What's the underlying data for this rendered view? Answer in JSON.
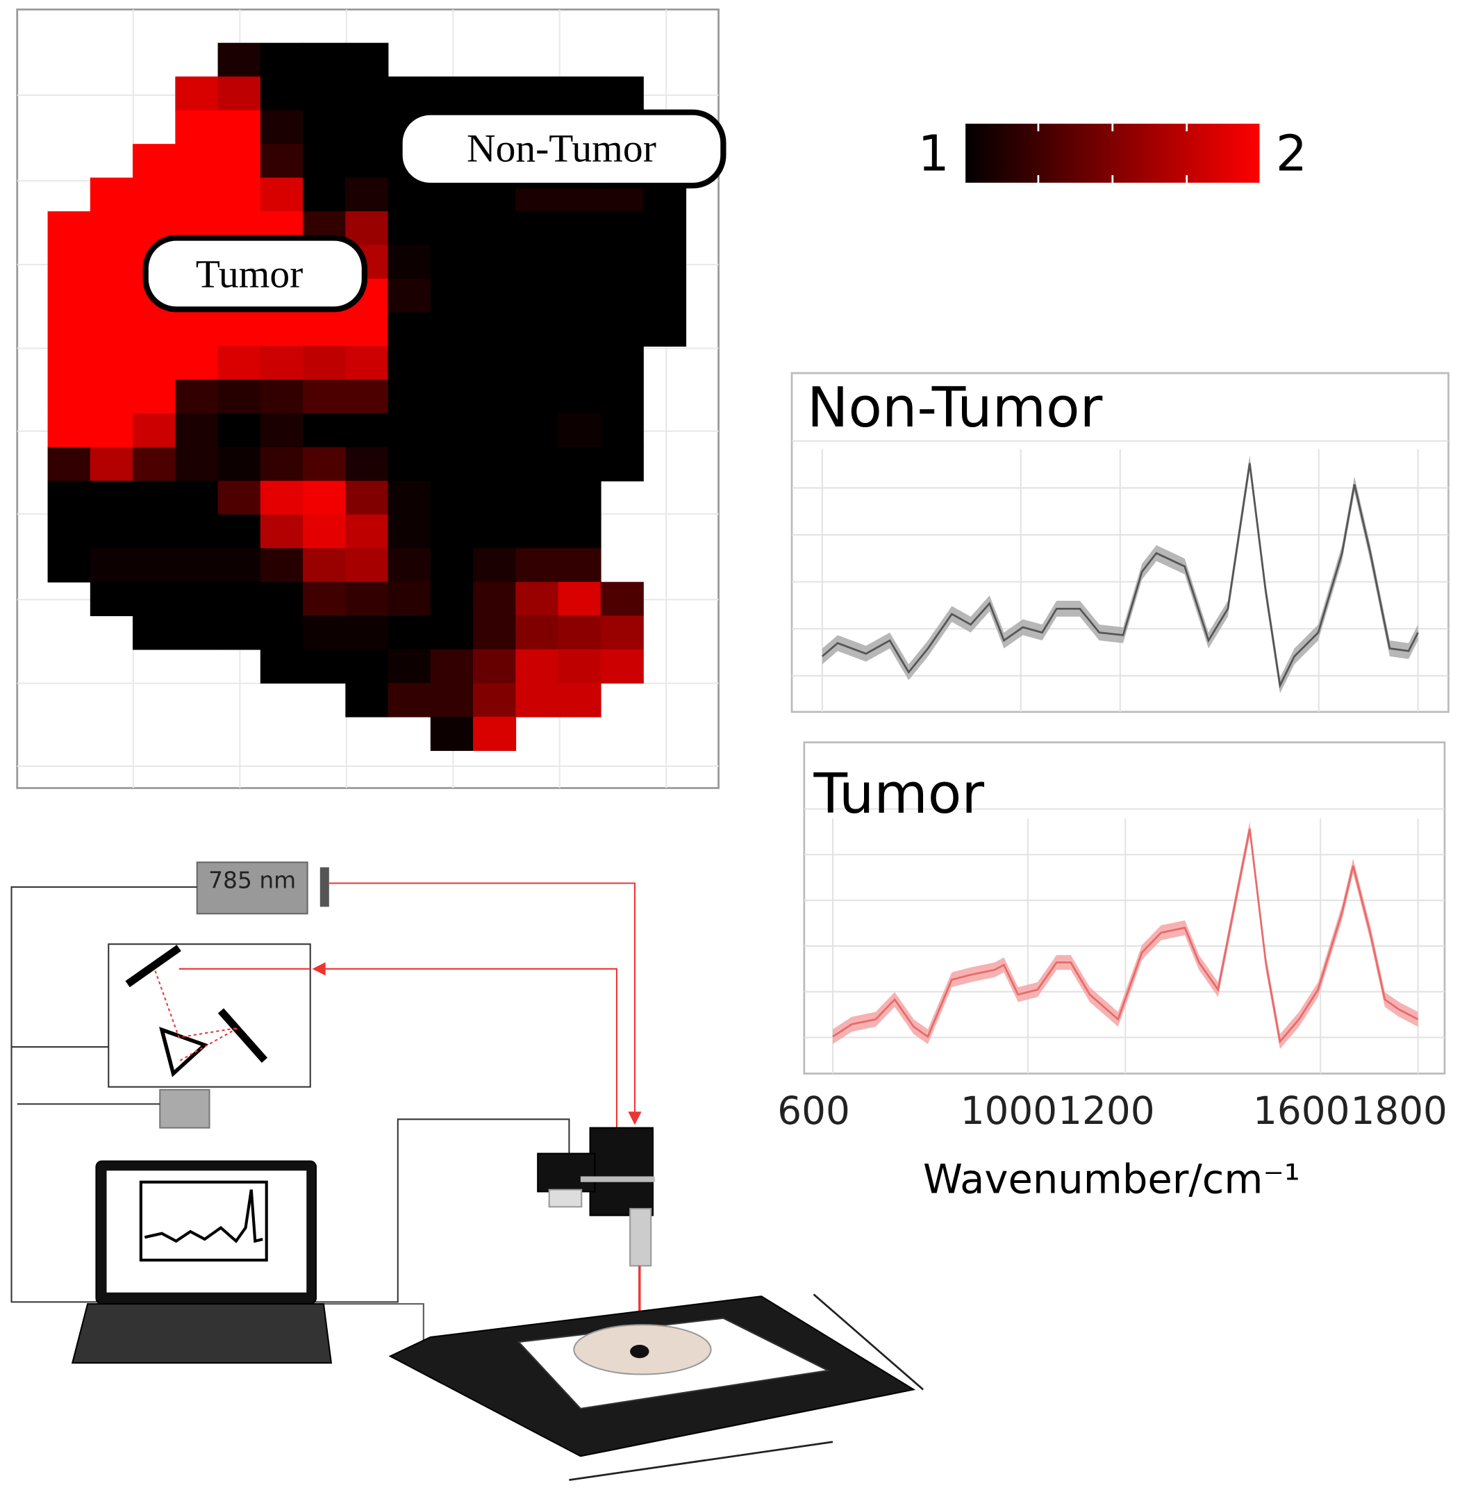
{
  "chart_data": [
    {
      "type": "heatmap",
      "colorbar_lim": [
        1,
        2
      ],
      "colorbar_ticks": [
        1,
        2
      ],
      "colors": [
        "#000000",
        "#ff0000"
      ],
      "annotations": [
        "Non-Tumor",
        "Tumor"
      ],
      "values": [
        [
          null,
          null,
          null,
          null,
          1.1,
          1.0,
          1.0,
          1.0,
          null,
          null,
          null,
          null,
          null,
          null,
          null
        ],
        [
          null,
          null,
          null,
          1.85,
          1.75,
          1.0,
          1.0,
          1.0,
          1.0,
          1.0,
          1.0,
          1.0,
          1.0,
          1.0,
          null
        ],
        [
          null,
          null,
          null,
          2,
          2,
          1.1,
          1.0,
          1.0,
          1.0,
          1.0,
          1.0,
          1.0,
          1.0,
          1.0,
          null
        ],
        [
          null,
          null,
          2,
          2,
          2,
          1.2,
          1.0,
          1.0,
          1.0,
          1.0,
          1.0,
          1.0,
          1.0,
          1.0,
          1.0
        ],
        [
          null,
          2,
          2,
          2,
          2,
          1.85,
          1.0,
          1.1,
          1.0,
          1.0,
          1.0,
          1.1,
          1.1,
          1.1,
          1.0
        ],
        [
          2,
          2,
          2,
          2,
          2,
          2,
          1.2,
          1.6,
          1.0,
          1.0,
          1.0,
          1.0,
          1.0,
          1.0,
          1.0
        ],
        [
          2,
          2,
          2,
          2,
          2,
          2,
          2,
          1.7,
          1.05,
          1.0,
          1.0,
          1.0,
          1.0,
          1.0,
          1.0
        ],
        [
          2,
          2,
          2,
          2,
          2,
          2,
          2,
          2,
          1.1,
          1.0,
          1.0,
          1.0,
          1.0,
          1.0,
          1.0
        ],
        [
          2,
          2,
          2,
          2,
          2,
          2,
          2,
          2,
          1.0,
          1.0,
          1.0,
          1.0,
          1.0,
          1.0,
          1.0
        ],
        [
          2,
          2,
          2,
          2,
          1.85,
          1.8,
          1.75,
          1.8,
          1.0,
          1.0,
          1.0,
          1.0,
          1.0,
          1.0,
          null
        ],
        [
          2,
          2,
          2,
          1.2,
          1.15,
          1.2,
          1.3,
          1.3,
          1.0,
          1.0,
          1.0,
          1.0,
          1.0,
          1.0,
          null
        ],
        [
          2,
          2,
          1.8,
          1.1,
          1.0,
          1.1,
          1.0,
          1.0,
          1.0,
          1.0,
          1.0,
          1.0,
          1.05,
          1.0,
          null
        ],
        [
          1.2,
          1.7,
          1.3,
          1.1,
          1.05,
          1.2,
          1.3,
          1.1,
          1.0,
          1.0,
          1.0,
          1.0,
          1.0,
          1.0,
          null
        ],
        [
          1.0,
          1.0,
          1.0,
          1.0,
          1.3,
          1.9,
          1.95,
          1.5,
          1.05,
          1.0,
          1.0,
          1.0,
          1.0,
          null,
          null
        ],
        [
          1.0,
          1.0,
          1.0,
          1.0,
          1.0,
          1.7,
          1.9,
          1.75,
          1.05,
          1.0,
          1.0,
          1.0,
          1.0,
          null,
          null
        ],
        [
          1.0,
          1.05,
          1.05,
          1.05,
          1.05,
          1.15,
          1.6,
          1.65,
          1.1,
          1.0,
          1.1,
          1.2,
          1.2,
          null,
          null
        ],
        [
          null,
          1.0,
          1.0,
          1.0,
          1.0,
          1.0,
          1.25,
          1.2,
          1.15,
          1.0,
          1.2,
          1.6,
          1.85,
          1.3,
          null
        ],
        [
          null,
          null,
          1.0,
          1.0,
          1.0,
          1.0,
          1.05,
          1.05,
          1.0,
          1.0,
          1.2,
          1.5,
          1.55,
          1.6,
          null
        ],
        [
          null,
          null,
          null,
          null,
          null,
          1.0,
          1.0,
          1.0,
          1.05,
          1.2,
          1.4,
          1.8,
          1.75,
          1.8,
          null
        ],
        [
          null,
          null,
          null,
          null,
          null,
          null,
          null,
          1.0,
          1.2,
          1.2,
          1.5,
          1.8,
          1.8,
          null,
          null
        ],
        [
          null,
          null,
          null,
          null,
          null,
          null,
          null,
          null,
          null,
          1.05,
          1.85,
          null,
          null,
          null,
          null
        ]
      ]
    },
    {
      "type": "spectrum",
      "title": "Non-Tumor",
      "color": "#555555",
      "band_color": "#aaaaaa",
      "band": 0.03,
      "grid": true,
      "xlim": [
        600,
        1800
      ],
      "ylim": [
        0,
        1
      ],
      "x": [
        600,
        631,
        688,
        736,
        774,
        813,
        861,
        899,
        937,
        966,
        1004,
        1043,
        1072,
        1119,
        1158,
        1206,
        1244,
        1273,
        1330,
        1378,
        1417,
        1461,
        1493,
        1522,
        1551,
        1599,
        1647,
        1672,
        1704,
        1743,
        1781,
        1800
      ],
      "values": [
        0.21,
        0.26,
        0.22,
        0.27,
        0.15,
        0.24,
        0.37,
        0.33,
        0.41,
        0.27,
        0.32,
        0.3,
        0.39,
        0.39,
        0.3,
        0.29,
        0.53,
        0.6,
        0.55,
        0.27,
        0.39,
        0.94,
        0.46,
        0.1,
        0.21,
        0.3,
        0.6,
        0.86,
        0.6,
        0.24,
        0.23,
        0.3
      ]
    },
    {
      "type": "spectrum",
      "title": "Tumor",
      "color": "#e86a6a",
      "band_color": "#f4a5a5",
      "band": 0.03,
      "grid": true,
      "xlim": [
        600,
        1800
      ],
      "ylim": [
        0,
        1
      ],
      "xticks": [
        600,
        1000,
        1200,
        1600,
        1800
      ],
      "xlabel": "Wavenumber/cm⁻¹",
      "x": [
        600,
        639,
        688,
        727,
        766,
        795,
        844,
        883,
        932,
        951,
        980,
        1020,
        1059,
        1088,
        1127,
        1185,
        1234,
        1273,
        1322,
        1351,
        1390,
        1455,
        1488,
        1517,
        1556,
        1595,
        1644,
        1667,
        1702,
        1732,
        1761,
        1800
      ],
      "values": [
        0.08,
        0.13,
        0.15,
        0.23,
        0.12,
        0.08,
        0.31,
        0.33,
        0.35,
        0.37,
        0.25,
        0.27,
        0.38,
        0.38,
        0.25,
        0.15,
        0.42,
        0.5,
        0.52,
        0.38,
        0.27,
        0.92,
        0.38,
        0.06,
        0.15,
        0.27,
        0.58,
        0.77,
        0.5,
        0.23,
        0.19,
        0.15
      ]
    }
  ],
  "diagram": {
    "laser_label": "785 nm"
  }
}
